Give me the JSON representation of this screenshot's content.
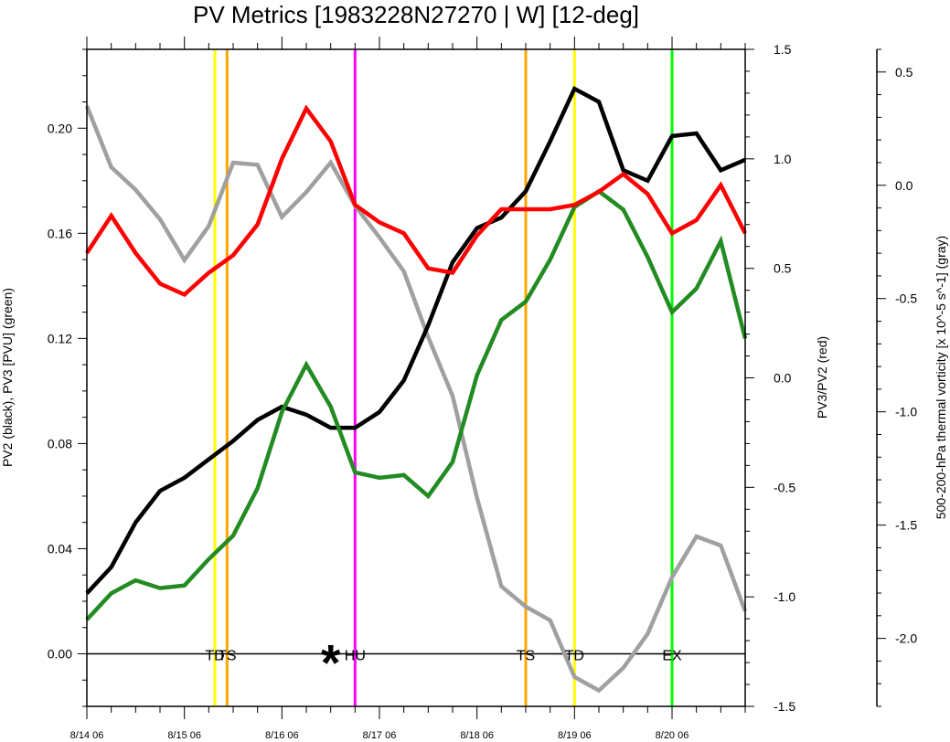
{
  "chart_data": {
    "type": "line",
    "title": "PV Metrics [1983228N27270 | W] [12-deg]",
    "x_tick_labels": [
      "8/14 06",
      "8/15 06",
      "8/16 06",
      "8/17 06",
      "8/18 06",
      "8/19 06",
      "8/20 06"
    ],
    "x_range_steps": [
      0,
      27
    ],
    "axes": {
      "left": {
        "label": "PV2 (black), PV3 [PVU] (green)",
        "range": [
          -0.02,
          0.23
        ],
        "ticks": [
          0.0,
          0.04,
          0.08,
          0.12,
          0.16,
          0.2
        ],
        "tick_labels": [
          "0.00",
          "0.04",
          "0.08",
          "0.12",
          "0.16",
          "0.20"
        ]
      },
      "right": {
        "label": "PV3/PV2 (red)",
        "range": [
          -1.5,
          1.5
        ],
        "ticks": [
          -1.5,
          -1.0,
          -0.5,
          0.0,
          0.5,
          1.0,
          1.5
        ],
        "tick_labels": [
          "-1.5",
          "-1.0",
          "-0.5",
          "0.0",
          "0.5",
          "1.0",
          "1.5"
        ]
      },
      "far_right": {
        "label": "500-200-hPa thermal vorticity [x 10^-5 s^-1] (gray)",
        "range": [
          -2.3,
          0.6
        ],
        "ticks": [
          -2.0,
          -1.5,
          -1.0,
          -0.5,
          0.0,
          0.5
        ],
        "tick_labels": [
          "-2.0",
          "-1.5",
          "-1.0",
          "-0.5",
          "0.0",
          "0.5"
        ]
      }
    },
    "series": [
      {
        "color": "#000000",
        "axis": "left",
        "values": [
          0.023,
          0.033,
          0.05,
          0.062,
          0.067,
          0.074,
          0.081,
          0.089,
          0.094,
          0.091,
          0.086,
          0.086,
          0.092,
          0.104,
          0.125,
          0.149,
          0.162,
          0.166,
          0.176,
          0.195,
          0.215,
          0.21,
          0.184,
          0.18,
          0.197,
          0.198,
          0.184,
          0.188
        ]
      },
      {
        "color": "#228b22",
        "axis": "left",
        "values": [
          0.013,
          0.023,
          0.028,
          0.025,
          0.026,
          0.036,
          0.045,
          0.063,
          0.092,
          0.11,
          0.094,
          0.069,
          0.067,
          0.068,
          0.06,
          0.073,
          0.106,
          0.127,
          0.134,
          0.15,
          0.17,
          0.176,
          0.169,
          0.151,
          0.13,
          0.139,
          0.157,
          0.12
        ]
      },
      {
        "color": "#ff0000",
        "axis": "right",
        "values": [
          0.57,
          0.74,
          0.57,
          0.43,
          0.38,
          0.48,
          0.56,
          0.7,
          1.0,
          1.23,
          1.08,
          0.79,
          0.71,
          0.66,
          0.5,
          0.48,
          0.65,
          0.77,
          0.77,
          0.77,
          0.79,
          0.85,
          0.93,
          0.84,
          0.66,
          0.72,
          0.88,
          0.66
        ]
      },
      {
        "color": "#a0a0a0",
        "axis": "far_right",
        "values": [
          0.35,
          0.08,
          -0.02,
          -0.15,
          -0.33,
          -0.18,
          0.1,
          0.09,
          -0.14,
          -0.03,
          0.1,
          -0.09,
          -0.23,
          -0.38,
          -0.67,
          -0.93,
          -1.38,
          -1.77,
          -1.86,
          -1.92,
          -2.17,
          -2.23,
          -2.13,
          -1.98,
          -1.73,
          -1.55,
          -1.59,
          -1.88
        ]
      }
    ],
    "events": [
      {
        "label": "TD",
        "step": 5.25,
        "color": "#ffff00"
      },
      {
        "label": "TS",
        "step": 5.75,
        "color": "#ffa500"
      },
      {
        "label": "HU",
        "step": 11.0,
        "color": "#ff00ff"
      },
      {
        "label": "TS",
        "step": 18.0,
        "color": "#ffa500"
      },
      {
        "label": "TD",
        "step": 20.0,
        "color": "#ffff00"
      },
      {
        "label": "EX",
        "step": 24.0,
        "color": "#00ff00"
      }
    ],
    "marker": {
      "symbol": "*",
      "step": 10.0
    },
    "grid": false,
    "legend": "none"
  }
}
